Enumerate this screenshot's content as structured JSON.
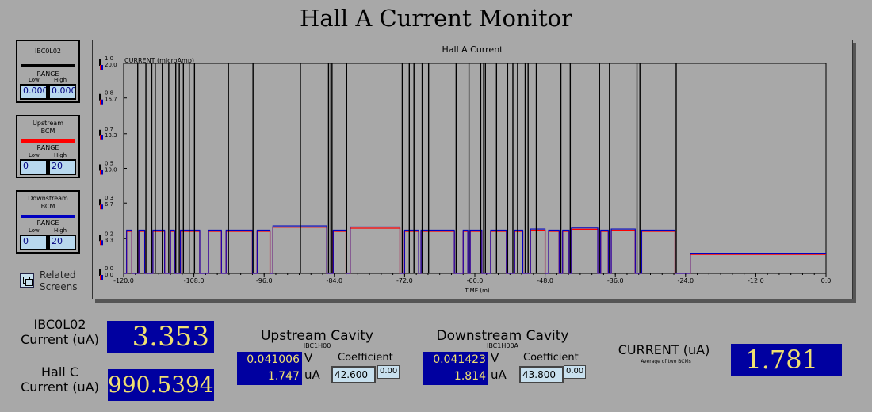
{
  "title": "Hall A Current Monitor",
  "panels": [
    {
      "name": "IBC0L02",
      "color": "#000000",
      "range": "RANGE",
      "low_label": "Low",
      "high_label": "High",
      "low": "0.000",
      "high": "0.000"
    },
    {
      "name": "Upstream\nBCM",
      "color": "#ff0000",
      "range": "RANGE",
      "low_label": "Low",
      "high_label": "High",
      "low": "0",
      "high": "20"
    },
    {
      "name": "Downstream\nBCM",
      "color": "#0000c0",
      "range": "RANGE",
      "low_label": "Low",
      "high_label": "High",
      "low": "0",
      "high": "20"
    }
  ],
  "related": {
    "label": "Related\nScreens"
  },
  "chart_data": {
    "type": "line",
    "title": "Hall A Current",
    "ylabel": "CURRENT (microAmp)",
    "xlabel": "TIME (m)",
    "x_ticks": [
      "-120.0",
      "-108.0",
      "-96.0",
      "-84.0",
      "-72.0",
      "-60.0",
      "-48.0",
      "-36.0",
      "-24.0",
      "-12.0",
      "0.0"
    ],
    "y_ticks_left": [
      "1.0",
      "0.8",
      "0.7",
      "0.5",
      "0.3",
      "0.2",
      "0.0"
    ],
    "y_ticks_right": [
      "20.0",
      "16.7",
      "13.3",
      "10.0",
      "6.7",
      "3.3",
      "0.0"
    ],
    "xlim": [
      -120,
      0
    ],
    "ylim": [
      0,
      20
    ],
    "spikes_x": [
      -117.6,
      -116.2,
      -115.2,
      -114.6,
      -113.4,
      -112.3,
      -111.1,
      -110.5,
      -109.8,
      -108.8,
      -107.9,
      -102.1,
      -97.9,
      -89.8,
      -85.0,
      -84.6,
      -84.4,
      -81.9,
      -72.4,
      -71.2,
      -70.4,
      -69.0,
      -67.9,
      -63.2,
      -61.0,
      -59.0,
      -58.5,
      -58.2,
      -56.3,
      -54.4,
      -53.5,
      -52.7,
      -51.4,
      -50.9,
      -49.5,
      -45.3,
      -43.7,
      -38.7,
      -37.0,
      -32.3,
      -31.8,
      -25.6
    ],
    "series": [
      {
        "name": "Upstream BCM",
        "color": "#ff0000"
      },
      {
        "name": "Downstream BCM",
        "color": "#0000c0"
      }
    ],
    "segments": [
      {
        "x0": -119.5,
        "x1": -118.6,
        "y": 4.0
      },
      {
        "x0": -117.4,
        "x1": -116.4,
        "y": 4.0
      },
      {
        "x0": -115.0,
        "x1": -113.0,
        "y": 4.0
      },
      {
        "x0": -112.0,
        "x1": -111.3,
        "y": 4.0
      },
      {
        "x0": -110.3,
        "x1": -107.0,
        "y": 4.0
      },
      {
        "x0": -105.5,
        "x1": -103.3,
        "y": 4.0
      },
      {
        "x0": -102.5,
        "x1": -98.0,
        "y": 4.0
      },
      {
        "x0": -97.2,
        "x1": -95.0,
        "y": 4.0
      },
      {
        "x0": -94.5,
        "x1": -85.3,
        "y": 4.4
      },
      {
        "x0": -84.2,
        "x1": -82.0,
        "y": 4.0
      },
      {
        "x0": -81.3,
        "x1": -72.8,
        "y": 4.3
      },
      {
        "x0": -72.0,
        "x1": -69.6,
        "y": 4.0
      },
      {
        "x0": -69.2,
        "x1": -63.5,
        "y": 4.0
      },
      {
        "x0": -62.0,
        "x1": -61.2,
        "y": 4.0
      },
      {
        "x0": -60.8,
        "x1": -58.8,
        "y": 4.0
      },
      {
        "x0": -57.3,
        "x1": -54.6,
        "y": 4.0
      },
      {
        "x0": -53.2,
        "x1": -51.8,
        "y": 4.0
      },
      {
        "x0": -50.5,
        "x1": -48.0,
        "y": 4.1
      },
      {
        "x0": -47.4,
        "x1": -45.6,
        "y": 4.0
      },
      {
        "x0": -45.0,
        "x1": -43.9,
        "y": 4.0
      },
      {
        "x0": -43.5,
        "x1": -39.0,
        "y": 4.2
      },
      {
        "x0": -38.5,
        "x1": -37.2,
        "y": 4.0
      },
      {
        "x0": -36.7,
        "x1": -32.6,
        "y": 4.1
      },
      {
        "x0": -31.5,
        "x1": -25.8,
        "y": 4.0
      },
      {
        "x0": -23.2,
        "x1": 0.0,
        "y": 1.8
      }
    ]
  },
  "readouts": {
    "ibc_label": "IBC0L02\nCurrent (uA)",
    "ibc_value": "3.353",
    "hallc_label": "Hall C\nCurrent (uA)",
    "hallc_value": "990.5394",
    "upstream": {
      "title": "Upstream Cavity",
      "sub": "IBC1H00",
      "volts": "0.041006",
      "v_unit": "V",
      "ua": "1.747",
      "ua_unit": "uA",
      "coef_label": "Coefficient",
      "coef": "42.600",
      "offset": "0.00"
    },
    "downstream": {
      "title": "Downstream Cavity",
      "sub": "IBC1H00A",
      "volts": "0.041423",
      "v_unit": "V",
      "ua": "1.814",
      "ua_unit": "uA",
      "coef_label": "Coefficient",
      "coef": "43.800",
      "offset": "0.00"
    },
    "current_label": "CURRENT (uA)",
    "current_sub": "Average of two BCMs",
    "current_value": "1.781"
  }
}
